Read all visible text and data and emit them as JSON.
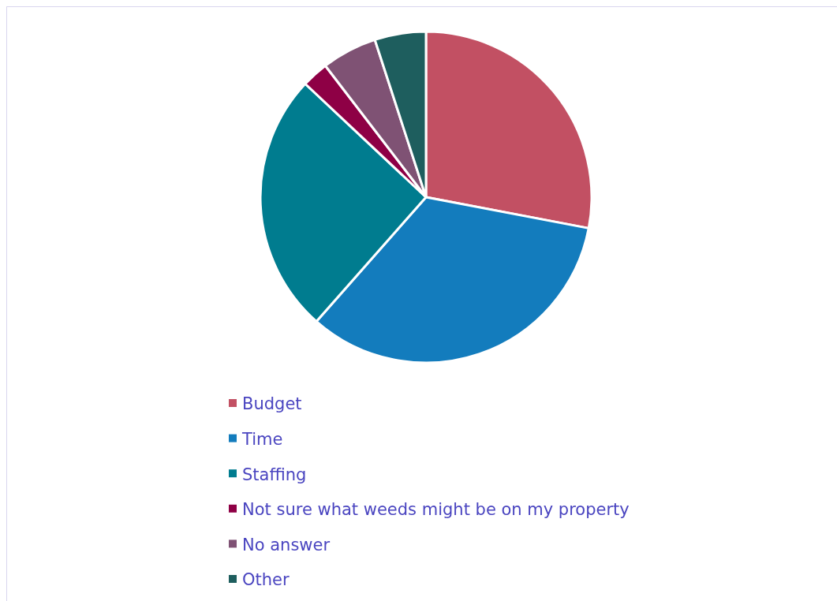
{
  "chart_data": {
    "type": "pie",
    "categories": [
      "Budget",
      "Time",
      "Staffing",
      "Not sure what weeds might be on my property",
      "No answer",
      "Other"
    ],
    "values": [
      28,
      33.5,
      25.5,
      2.6,
      5.4,
      5
    ],
    "colors": [
      "#c25063",
      "#137cbd",
      "#007c8f",
      "#8e0045",
      "#7f5274",
      "#1e5e5e"
    ],
    "legend": "bottom"
  }
}
